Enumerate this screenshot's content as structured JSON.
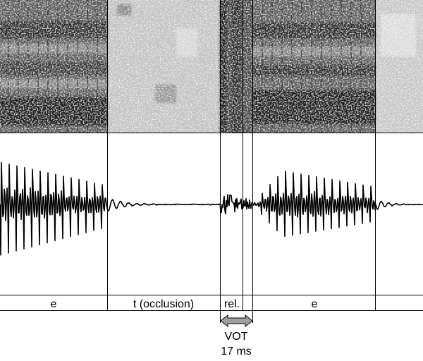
{
  "segments": [
    {
      "label": "e"
    },
    {
      "label": "t (occlusion)"
    },
    {
      "label": "rel."
    },
    {
      "label": "e"
    }
  ],
  "vot": {
    "label": "VOT",
    "duration": "17 ms"
  },
  "colors": {
    "arrow_fill": "#a0a0a0",
    "lines": "#000000",
    "waveform": "#000000"
  }
}
